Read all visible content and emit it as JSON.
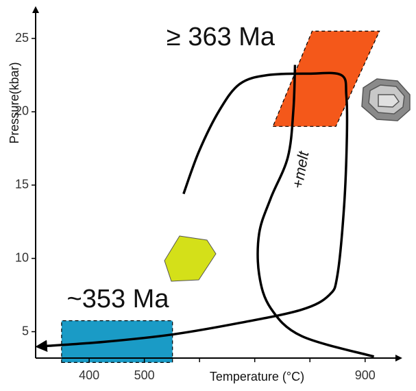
{
  "chart_data": {
    "type": "pt-path",
    "x_label": "Temperature (°C)",
    "y_label": "Pressure(kbar)",
    "xlim": [
      303,
      950
    ],
    "ylim": [
      3.2,
      26.5
    ],
    "xticks": [
      400,
      500,
      900
    ],
    "xminor": [
      600,
      700,
      800
    ],
    "yticks": [
      5,
      10,
      15,
      20,
      25
    ],
    "annotations": [
      "≥ 363 Ma",
      "~353 Ma",
      "+melt"
    ],
    "regions": [
      {
        "color": "#f4581a",
        "p": [
          19.0,
          25.5
        ],
        "t_bottom": [
          733,
          847
        ],
        "t_top": [
          804,
          926
        ]
      },
      {
        "color": "#1a9bc6",
        "p": [
          2.9,
          5.75
        ],
        "t_bottom": [
          350,
          551
        ],
        "t_top": [
          350,
          551
        ]
      }
    ],
    "series": [
      {
        "color": "#000000",
        "arrow": true,
        "x": [
          571,
          599,
          636,
          673,
          723,
          798,
          857,
          866,
          867,
          862,
          850,
          835,
          785,
          673,
          549,
          425,
          313
        ],
        "y": [
          14.4,
          17.3,
          20.1,
          21.9,
          22.5,
          22.6,
          22.5,
          21.1,
          18.3,
          13.6,
          8.9,
          7.5,
          6.5,
          5.6,
          4.8,
          4.3,
          4.0
        ]
      },
      {
        "color": "#000000",
        "arrow": false,
        "x": [
          773,
          770,
          760,
          729,
          708,
          708,
          729,
          785,
          916
        ],
        "y": [
          23.2,
          20.1,
          16.9,
          14.1,
          11.7,
          8.9,
          6.6,
          4.7,
          3.3
        ]
      }
    ]
  }
}
